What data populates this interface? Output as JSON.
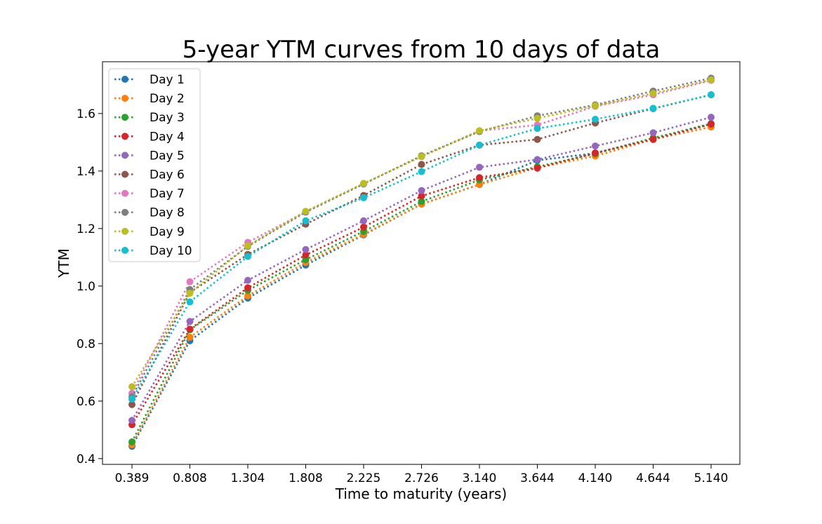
{
  "chart_data": {
    "type": "line",
    "title": "5-year YTM curves from 10 days of data",
    "xlabel": "Time to maturity (years)",
    "ylabel": "YTM",
    "categories": [
      "0.389",
      "0.808",
      "1.304",
      "1.808",
      "2.225",
      "2.726",
      "3.140",
      "3.644",
      "4.140",
      "4.644",
      "5.140"
    ],
    "ylim": [
      0.38,
      1.78
    ],
    "yticks": [
      "0.4",
      "0.6",
      "0.8",
      "1.0",
      "1.2",
      "1.4",
      "1.6"
    ],
    "grid": false,
    "legend_position": "top-left",
    "line_style": "dotted",
    "marker": "circle",
    "series": [
      {
        "name": "Day 1",
        "color": "#1f77b4",
        "values": [
          0.443,
          0.81,
          0.958,
          1.073,
          1.178,
          1.285,
          1.353,
          1.437,
          1.462,
          1.514,
          1.565
        ]
      },
      {
        "name": "Day 2",
        "color": "#ff7f0e",
        "values": [
          0.448,
          0.822,
          0.966,
          1.082,
          1.18,
          1.285,
          1.353,
          1.412,
          1.452,
          1.51,
          1.553
        ]
      },
      {
        "name": "Day 3",
        "color": "#2ca02c",
        "values": [
          0.458,
          0.848,
          0.985,
          1.092,
          1.19,
          1.294,
          1.369,
          1.415,
          1.46,
          1.515,
          1.563
        ]
      },
      {
        "name": "Day 4",
        "color": "#d62728",
        "values": [
          0.518,
          0.85,
          0.994,
          1.108,
          1.205,
          1.313,
          1.377,
          1.41,
          1.463,
          1.51,
          1.563
        ]
      },
      {
        "name": "Day 5",
        "color": "#9467bd",
        "values": [
          0.533,
          0.877,
          1.02,
          1.127,
          1.227,
          1.332,
          1.413,
          1.44,
          1.487,
          1.533,
          1.587
        ]
      },
      {
        "name": "Day 6",
        "color": "#8c564b",
        "values": [
          0.588,
          0.978,
          1.11,
          1.215,
          1.315,
          1.423,
          1.49,
          1.51,
          1.567,
          1.617,
          1.665
        ]
      },
      {
        "name": "Day 7",
        "color": "#e377c2",
        "values": [
          0.627,
          1.015,
          1.152,
          1.258,
          1.355,
          1.452,
          1.54,
          1.56,
          1.625,
          1.665,
          1.715
        ]
      },
      {
        "name": "Day 8",
        "color": "#7f7f7f",
        "values": [
          0.615,
          0.988,
          1.138,
          1.257,
          1.355,
          1.453,
          1.537,
          1.592,
          1.63,
          1.678,
          1.723
        ]
      },
      {
        "name": "Day 9",
        "color": "#bcbd22",
        "values": [
          0.65,
          0.975,
          1.14,
          1.26,
          1.357,
          1.45,
          1.54,
          1.583,
          1.627,
          1.67,
          1.717
        ]
      },
      {
        "name": "Day 10",
        "color": "#17becf",
        "values": [
          0.607,
          0.945,
          1.103,
          1.227,
          1.307,
          1.398,
          1.49,
          1.548,
          1.58,
          1.618,
          1.665
        ]
      }
    ]
  }
}
